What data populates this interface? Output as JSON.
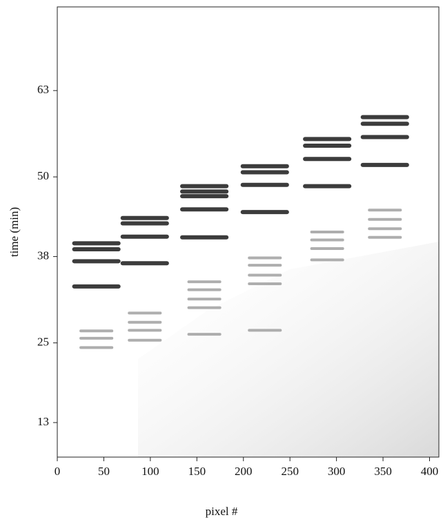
{
  "chart_data": {
    "type": "bands",
    "x_label": "pixel #",
    "y_label": "time (min)",
    "xlim": [
      0,
      410
    ],
    "ylim": [
      7.8,
      75.6
    ],
    "xticks": [
      0,
      50,
      100,
      150,
      200,
      250,
      300,
      350,
      400
    ],
    "yticks": [
      13,
      25,
      38,
      50,
      63
    ],
    "color": "#2b2b2b",
    "faint_color": "#9a9a9a",
    "lanes": [
      {
        "x": 42,
        "values": [
          40.0,
          39.1,
          37.3,
          33.5
        ],
        "faint_values": [
          26.8,
          25.7,
          24.3
        ]
      },
      {
        "x": 94,
        "values": [
          43.8,
          43.0,
          41.0,
          37.0
        ],
        "faint_values": [
          29.5,
          28.1,
          26.9,
          25.4
        ]
      },
      {
        "x": 158,
        "values": [
          48.6,
          47.8,
          47.1,
          45.1,
          40.9
        ],
        "faint_values": [
          34.2,
          33.0,
          31.6,
          30.3,
          26.3
        ]
      },
      {
        "x": 223,
        "values": [
          51.6,
          50.7,
          48.8,
          44.7
        ],
        "faint_values": [
          37.8,
          36.7,
          35.2,
          33.9,
          26.9
        ]
      },
      {
        "x": 290,
        "values": [
          55.7,
          54.7,
          52.7,
          48.6
        ],
        "faint_values": [
          41.7,
          40.5,
          39.2,
          37.5
        ]
      },
      {
        "x": 352,
        "values": [
          59.0,
          58.0,
          56.0,
          51.8
        ],
        "faint_values": [
          45.0,
          43.6,
          42.2,
          40.9
        ]
      }
    ]
  }
}
